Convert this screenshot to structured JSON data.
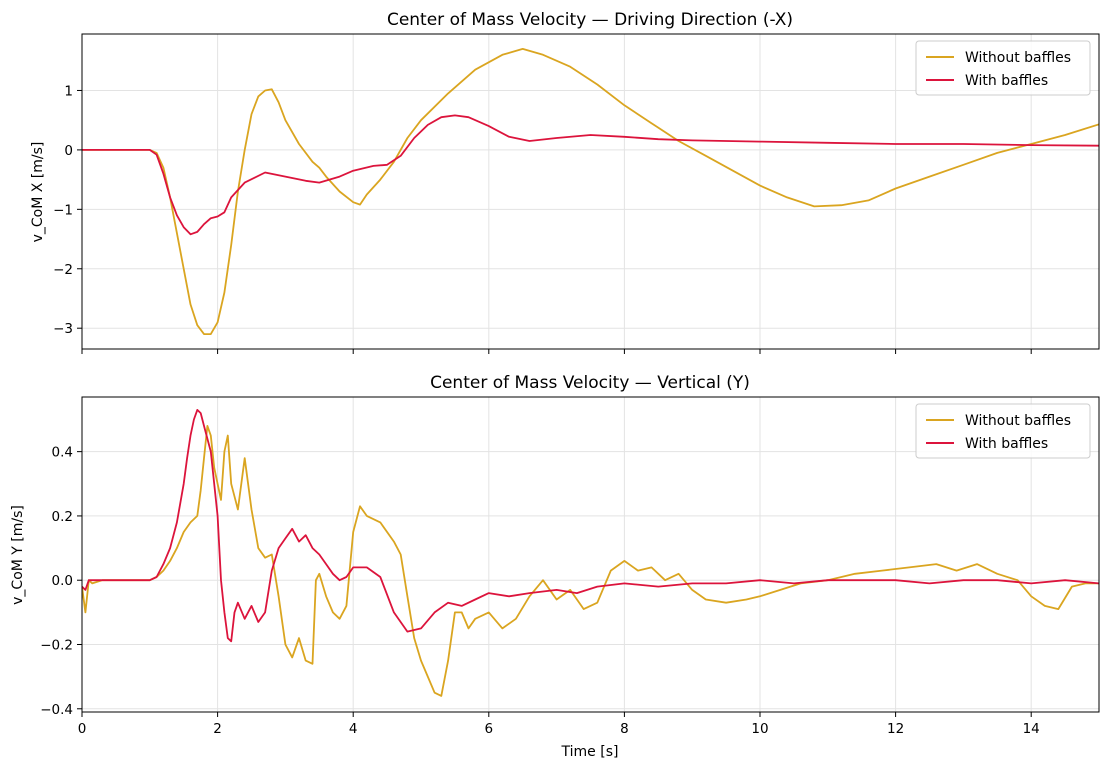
{
  "chart_data": [
    {
      "type": "line",
      "title": "Center of Mass Velocity — Driving Direction (-X)",
      "xlabel": "",
      "ylabel": "v_CoM X [m/s]",
      "xlim": [
        0,
        15
      ],
      "ylim": [
        -3.35,
        1.95
      ],
      "xticks": [
        0,
        2,
        4,
        6,
        8,
        10,
        12,
        14
      ],
      "xtick_labels": [
        "",
        "",
        "",
        "",
        "",
        "",
        "",
        ""
      ],
      "yticks": [
        -3,
        -2,
        -1,
        0,
        1
      ],
      "ytick_labels": [
        "−3",
        "−2",
        "−1",
        "0",
        "1"
      ],
      "grid": true,
      "legend_position": "top-right",
      "series": [
        {
          "name": "Without baffles",
          "color": "#DAA520",
          "x": [
            0,
            1.0,
            1.1,
            1.2,
            1.3,
            1.4,
            1.5,
            1.6,
            1.7,
            1.8,
            1.9,
            2.0,
            2.1,
            2.2,
            2.3,
            2.4,
            2.5,
            2.6,
            2.7,
            2.8,
            2.9,
            3.0,
            3.2,
            3.4,
            3.5,
            3.6,
            3.8,
            4.0,
            4.1,
            4.2,
            4.4,
            4.6,
            4.8,
            5.0,
            5.4,
            5.8,
            6.2,
            6.5,
            6.8,
            7.2,
            7.6,
            8.0,
            8.4,
            8.8,
            9.2,
            9.6,
            10.0,
            10.4,
            10.8,
            11.2,
            11.6,
            12.0,
            12.5,
            13.0,
            13.5,
            14.0,
            14.5,
            15.0
          ],
          "y": [
            0,
            0,
            -0.05,
            -0.3,
            -0.8,
            -1.4,
            -2.0,
            -2.6,
            -2.95,
            -3.1,
            -3.1,
            -2.9,
            -2.4,
            -1.6,
            -0.7,
            0.0,
            0.6,
            0.9,
            1.0,
            1.02,
            0.8,
            0.5,
            0.1,
            -0.2,
            -0.3,
            -0.45,
            -0.7,
            -0.88,
            -0.92,
            -0.75,
            -0.5,
            -0.2,
            0.2,
            0.5,
            0.95,
            1.35,
            1.6,
            1.7,
            1.6,
            1.4,
            1.1,
            0.75,
            0.45,
            0.15,
            -0.1,
            -0.35,
            -0.6,
            -0.8,
            -0.95,
            -0.93,
            -0.85,
            -0.65,
            -0.45,
            -0.25,
            -0.05,
            0.1,
            0.25,
            0.43
          ]
        },
        {
          "name": "With baffles",
          "color": "#DC143C",
          "x": [
            0,
            1.0,
            1.1,
            1.2,
            1.3,
            1.4,
            1.5,
            1.6,
            1.7,
            1.8,
            1.9,
            2.0,
            2.1,
            2.2,
            2.4,
            2.7,
            3.0,
            3.3,
            3.5,
            3.8,
            4.0,
            4.3,
            4.5,
            4.7,
            4.9,
            5.1,
            5.3,
            5.5,
            5.7,
            6.0,
            6.3,
            6.6,
            7.0,
            7.5,
            8.0,
            8.5,
            9.0,
            10.0,
            11.0,
            12.0,
            13.0,
            14.0,
            15.0
          ],
          "y": [
            0,
            0,
            -0.08,
            -0.4,
            -0.8,
            -1.1,
            -1.3,
            -1.42,
            -1.38,
            -1.25,
            -1.15,
            -1.12,
            -1.05,
            -0.8,
            -0.55,
            -0.38,
            -0.45,
            -0.52,
            -0.55,
            -0.45,
            -0.35,
            -0.27,
            -0.25,
            -0.1,
            0.2,
            0.42,
            0.55,
            0.58,
            0.55,
            0.4,
            0.22,
            0.15,
            0.2,
            0.25,
            0.22,
            0.18,
            0.16,
            0.14,
            0.12,
            0.1,
            0.1,
            0.08,
            0.07
          ]
        }
      ]
    },
    {
      "type": "line",
      "title": "Center of Mass Velocity — Vertical (Y)",
      "xlabel": "Time [s]",
      "ylabel": "v_CoM Y [m/s]",
      "xlim": [
        0,
        15
      ],
      "ylim": [
        -0.41,
        0.57
      ],
      "xticks": [
        0,
        2,
        4,
        6,
        8,
        10,
        12,
        14
      ],
      "xtick_labels": [
        "0",
        "2",
        "4",
        "6",
        "8",
        "10",
        "12",
        "14"
      ],
      "yticks": [
        -0.4,
        -0.2,
        0.0,
        0.2,
        0.4
      ],
      "ytick_labels": [
        "−0.4",
        "−0.2",
        "0.0",
        "0.2",
        "0.4"
      ],
      "grid": true,
      "legend_position": "top-right",
      "series": [
        {
          "name": "Without baffles",
          "color": "#DAA520",
          "x": [
            0,
            0.05,
            0.1,
            0.15,
            0.3,
            0.6,
            1.0,
            1.1,
            1.2,
            1.3,
            1.4,
            1.5,
            1.6,
            1.7,
            1.75,
            1.8,
            1.85,
            1.9,
            1.95,
            2.0,
            2.05,
            2.1,
            2.15,
            2.2,
            2.3,
            2.4,
            2.5,
            2.6,
            2.7,
            2.8,
            2.9,
            3.0,
            3.1,
            3.2,
            3.3,
            3.4,
            3.45,
            3.5,
            3.6,
            3.7,
            3.8,
            3.9,
            4.0,
            4.1,
            4.2,
            4.4,
            4.6,
            4.7,
            4.8,
            4.9,
            5.0,
            5.1,
            5.2,
            5.3,
            5.4,
            5.5,
            5.6,
            5.7,
            5.8,
            6.0,
            6.2,
            6.4,
            6.6,
            6.8,
            7.0,
            7.2,
            7.4,
            7.6,
            7.8,
            8.0,
            8.2,
            8.4,
            8.6,
            8.8,
            9.0,
            9.2,
            9.5,
            9.8,
            10.0,
            10.3,
            10.6,
            11.0,
            11.4,
            11.8,
            12.2,
            12.6,
            12.9,
            13.2,
            13.5,
            13.8,
            14.0,
            14.2,
            14.4,
            14.6,
            14.8,
            15.0
          ],
          "y": [
            -0.02,
            -0.1,
            0.0,
            -0.01,
            0.0,
            0.0,
            0.0,
            0.01,
            0.03,
            0.06,
            0.1,
            0.15,
            0.18,
            0.2,
            0.28,
            0.38,
            0.48,
            0.45,
            0.35,
            0.3,
            0.25,
            0.4,
            0.45,
            0.3,
            0.22,
            0.38,
            0.22,
            0.1,
            0.07,
            0.08,
            -0.05,
            -0.2,
            -0.24,
            -0.18,
            -0.25,
            -0.26,
            0.0,
            0.02,
            -0.05,
            -0.1,
            -0.12,
            -0.08,
            0.15,
            0.23,
            0.2,
            0.18,
            0.12,
            0.08,
            -0.05,
            -0.18,
            -0.25,
            -0.3,
            -0.35,
            -0.36,
            -0.25,
            -0.1,
            -0.1,
            -0.15,
            -0.12,
            -0.1,
            -0.15,
            -0.12,
            -0.05,
            0.0,
            -0.06,
            -0.03,
            -0.09,
            -0.07,
            0.03,
            0.06,
            0.03,
            0.04,
            0.0,
            0.02,
            -0.03,
            -0.06,
            -0.07,
            -0.06,
            -0.05,
            -0.03,
            -0.01,
            0.0,
            0.02,
            0.03,
            0.04,
            0.05,
            0.03,
            0.05,
            0.02,
            0.0,
            -0.05,
            -0.08,
            -0.09,
            -0.02,
            -0.01,
            -0.01
          ]
        },
        {
          "name": "With baffles",
          "color": "#DC143C",
          "x": [
            0,
            0.05,
            0.1,
            0.2,
            0.5,
            1.0,
            1.1,
            1.2,
            1.3,
            1.4,
            1.5,
            1.55,
            1.6,
            1.65,
            1.7,
            1.75,
            1.8,
            1.9,
            2.0,
            2.05,
            2.1,
            2.15,
            2.2,
            2.25,
            2.3,
            2.4,
            2.5,
            2.6,
            2.7,
            2.8,
            2.9,
            3.0,
            3.1,
            3.2,
            3.3,
            3.4,
            3.5,
            3.6,
            3.7,
            3.8,
            3.9,
            4.0,
            4.2,
            4.4,
            4.6,
            4.8,
            5.0,
            5.2,
            5.4,
            5.6,
            5.8,
            6.0,
            6.3,
            6.6,
            7.0,
            7.3,
            7.6,
            8.0,
            8.5,
            9.0,
            9.5,
            10.0,
            10.5,
            11.0,
            11.5,
            12.0,
            12.5,
            13.0,
            13.5,
            14.0,
            14.5,
            15.0
          ],
          "y": [
            -0.02,
            -0.03,
            0.0,
            0.0,
            0.0,
            0.0,
            0.01,
            0.05,
            0.1,
            0.18,
            0.3,
            0.38,
            0.45,
            0.5,
            0.53,
            0.52,
            0.48,
            0.4,
            0.2,
            0.0,
            -0.1,
            -0.18,
            -0.19,
            -0.1,
            -0.07,
            -0.12,
            -0.08,
            -0.13,
            -0.1,
            0.03,
            0.1,
            0.13,
            0.16,
            0.12,
            0.14,
            0.1,
            0.08,
            0.05,
            0.02,
            0.0,
            0.01,
            0.04,
            0.04,
            0.01,
            -0.1,
            -0.16,
            -0.15,
            -0.1,
            -0.07,
            -0.08,
            -0.06,
            -0.04,
            -0.05,
            -0.04,
            -0.03,
            -0.04,
            -0.02,
            -0.01,
            -0.02,
            -0.01,
            -0.01,
            0.0,
            -0.01,
            0.0,
            0.0,
            0.0,
            -0.01,
            0.0,
            0.0,
            -0.01,
            0.0,
            -0.01
          ]
        }
      ]
    }
  ]
}
